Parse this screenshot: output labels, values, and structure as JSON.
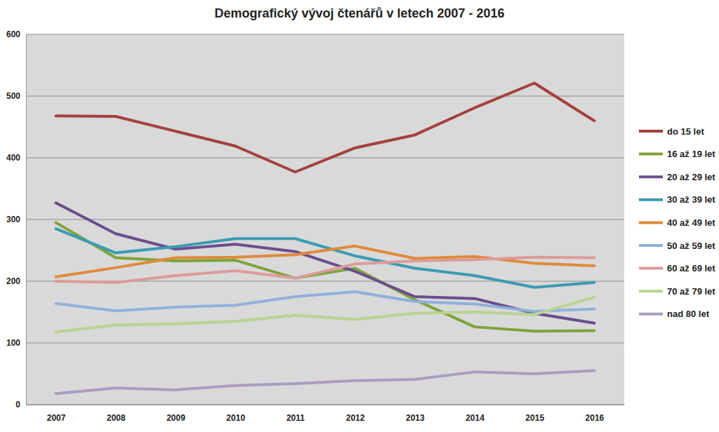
{
  "chart_data": {
    "type": "line",
    "title": "Demografický vývoj čtenářů v letech 2007 - 2016",
    "categories": [
      "2007",
      "2008",
      "2009",
      "2010",
      "2011",
      "2012",
      "2013",
      "2014",
      "2015",
      "2016"
    ],
    "series": [
      {
        "name": "do 15 let",
        "color": "#a4403e",
        "values": [
          468,
          467,
          443,
          419,
          377,
          416,
          437,
          481,
          521,
          460
        ]
      },
      {
        "name": "16 až 19 let",
        "color": "#7ea33b",
        "values": [
          295,
          238,
          233,
          234,
          205,
          221,
          170,
          126,
          119,
          120
        ]
      },
      {
        "name": "20 až 29 let",
        "color": "#6b4d8d",
        "values": [
          327,
          277,
          252,
          260,
          248,
          216,
          175,
          172,
          148,
          132
        ]
      },
      {
        "name": "30 až 39 let",
        "color": "#3a9bb1",
        "values": [
          285,
          246,
          256,
          269,
          269,
          241,
          221,
          209,
          190,
          198
        ]
      },
      {
        "name": "40 až 49 let",
        "color": "#e08a3b",
        "values": [
          207,
          222,
          238,
          239,
          243,
          257,
          237,
          240,
          229,
          225
        ]
      },
      {
        "name": "50 až 59 let",
        "color": "#8fb0dc",
        "values": [
          164,
          152,
          158,
          161,
          175,
          183,
          167,
          163,
          151,
          155
        ]
      },
      {
        "name": "60 až 69 let",
        "color": "#dc9b9a",
        "values": [
          200,
          198,
          209,
          217,
          205,
          228,
          233,
          235,
          239,
          238
        ]
      },
      {
        "name": "70 až 79 let",
        "color": "#b6d48f",
        "values": [
          118,
          129,
          131,
          135,
          145,
          138,
          148,
          150,
          146,
          174
        ]
      },
      {
        "name": "nad 80 let",
        "color": "#aa9cc3",
        "values": [
          18,
          27,
          24,
          31,
          34,
          39,
          41,
          53,
          50,
          55
        ]
      }
    ],
    "ylim": [
      0,
      600
    ],
    "yticks": [
      0,
      100,
      200,
      300,
      400,
      500,
      600
    ],
    "grid": true,
    "legend": "right"
  }
}
